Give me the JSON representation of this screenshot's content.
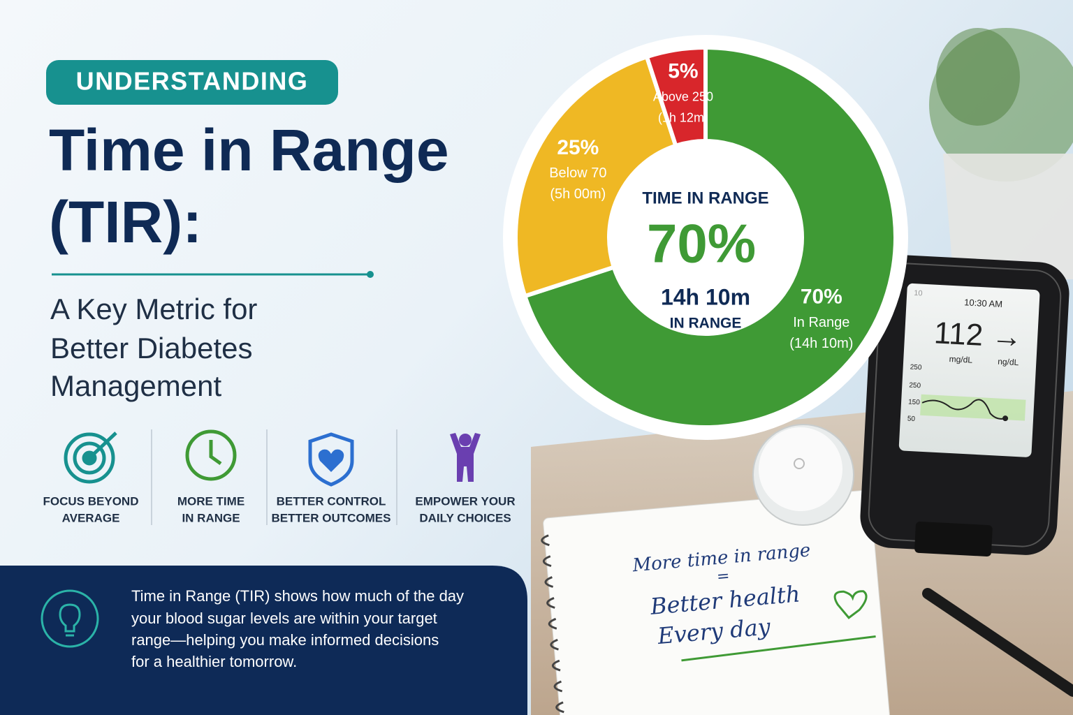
{
  "badge": "UNDERSTANDING",
  "title": [
    "Time in Range",
    "(TIR):"
  ],
  "subtitle": [
    "A Key Metric for",
    "Better Diabetes",
    "Management"
  ],
  "features": [
    {
      "label": [
        "FOCUS BEYOND",
        "AVERAGE"
      ]
    },
    {
      "label": [
        "MORE TIME",
        "IN RANGE"
      ]
    },
    {
      "label": [
        "BETTER CONTROL",
        "BETTER OUTCOMES"
      ]
    },
    {
      "label": [
        "EMPOWER YOUR",
        "DAILY CHOICES"
      ]
    }
  ],
  "info": [
    "Time in Range (TIR) shows how much of the day",
    "your blood sugar levels are within your target",
    "range—helping you make informed decisions",
    "for a healthier tomorrow."
  ],
  "meter": {
    "corner": "10",
    "time": "10:30 AM",
    "reading": "112 →",
    "units": [
      "mg/dL",
      "ng/dL"
    ],
    "axis_labels": [
      "250",
      "250",
      "150",
      "50"
    ]
  },
  "notebook": [
    "More time in range",
    "=",
    "Better health",
    "Every day"
  ],
  "chart_data": {
    "type": "donut",
    "categories": [
      "In Range",
      "Below 70",
      "Above 250"
    ],
    "values": [
      70,
      25,
      5
    ],
    "value_labels": [
      "70%",
      "25%",
      "5%"
    ],
    "durations": [
      "(14h 10m)",
      "(5h 00m)",
      "(1h 12m)"
    ],
    "colors": [
      "#3f9a35",
      "#efb824",
      "#d8262b"
    ],
    "center": {
      "heading": "TIME IN RANGE",
      "duration": "14h 10m",
      "caption": "IN RANGE"
    }
  }
}
